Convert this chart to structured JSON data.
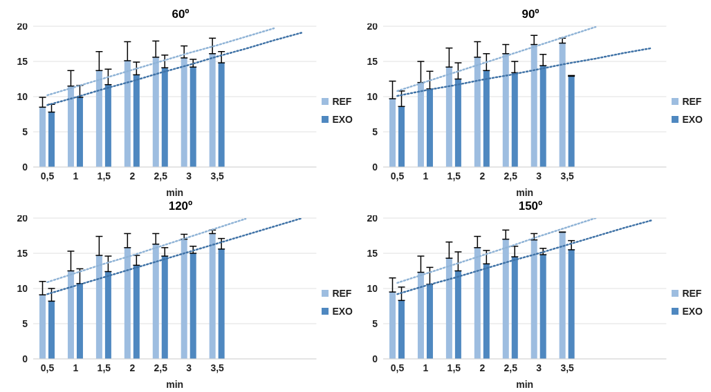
{
  "chart_data": [
    {
      "type": "bar",
      "title": "60º",
      "xlabel": "min",
      "categories": [
        "0,5",
        "1",
        "1,5",
        "2",
        "2,5",
        "3",
        "3,5",
        null,
        null,
        null
      ],
      "ylim": [
        0,
        20
      ],
      "yticks": [
        0,
        5,
        10,
        15,
        20
      ],
      "grid": "y",
      "legend": "right",
      "marker": "none",
      "series": [
        {
          "name": "REF",
          "color": "#9dbde0",
          "values": [
            8.5,
            11.5,
            13.7,
            15.1,
            15.6,
            15.5,
            16.1,
            null,
            null,
            null
          ],
          "errors": [
            [
              8.5,
              9.9
            ],
            [
              11.5,
              13.7
            ],
            [
              13.7,
              16.4
            ],
            [
              15.1,
              17.8
            ],
            [
              15.6,
              17.9
            ],
            [
              15.5,
              17.2
            ],
            [
              16.1,
              18.3
            ],
            null,
            null,
            null
          ]
        },
        {
          "name": "EXO",
          "color": "#4f88c0",
          "values": [
            7.8,
            9.9,
            11.7,
            13.1,
            14.1,
            14.2,
            14.8,
            null,
            null,
            null
          ],
          "errors": [
            [
              7.8,
              8.9
            ],
            [
              9.9,
              11.6
            ],
            [
              11.7,
              13.9
            ],
            [
              13.1,
              14.9
            ],
            [
              14.1,
              15.9
            ],
            [
              14.2,
              15.3
            ],
            [
              14.8,
              16.4
            ],
            null,
            null,
            null
          ]
        },
        {
          "type": "line",
          "line_style": "dotted",
          "color": "#8fb3d6",
          "values": [
            10.2,
            11.4,
            12.6,
            13.8,
            15.0,
            16.2,
            17.3,
            18.5,
            19.7,
            null
          ]
        },
        {
          "type": "line",
          "line_style": "dotted",
          "color": "#3f72a6",
          "values": [
            8.8,
            9.9,
            11.1,
            12.2,
            13.4,
            14.5,
            15.7,
            16.8,
            18.0,
            19.1
          ]
        }
      ]
    },
    {
      "type": "bar",
      "title": "90º",
      "xlabel": "min",
      "categories": [
        "0,5",
        "1",
        "1,5",
        "2",
        "2,5",
        "3",
        "3,5",
        null,
        null,
        null
      ],
      "ylim": [
        0,
        20
      ],
      "yticks": [
        0,
        5,
        10,
        15,
        20
      ],
      "grid": "y",
      "legend": "right",
      "marker": "none",
      "series": [
        {
          "name": "REF",
          "color": "#9dbde0",
          "values": [
            9.7,
            12.0,
            14.2,
            15.6,
            16.1,
            17.4,
            17.6,
            null,
            null,
            null
          ],
          "errors": [
            [
              9.7,
              12.2
            ],
            [
              12.0,
              15.0
            ],
            [
              14.2,
              16.9
            ],
            [
              15.6,
              17.8
            ],
            [
              16.1,
              17.4
            ],
            [
              17.4,
              18.7
            ],
            [
              17.6,
              18.3
            ],
            null,
            null,
            null
          ]
        },
        {
          "name": "EXO",
          "color": "#4f88c0",
          "values": [
            8.6,
            11.1,
            12.5,
            13.7,
            13.4,
            14.4,
            12.9,
            null,
            null,
            null
          ],
          "errors": [
            [
              8.6,
              10.8
            ],
            [
              11.1,
              13.6
            ],
            [
              12.5,
              14.8
            ],
            [
              13.7,
              16.1
            ],
            [
              13.4,
              15.0
            ],
            [
              14.4,
              16.0
            ],
            [
              12.9,
              13.0
            ],
            null,
            null,
            null
          ]
        },
        {
          "type": "line",
          "line_style": "dotted",
          "color": "#8fb3d6",
          "values": [
            10.8,
            12.1,
            13.4,
            14.7,
            16.0,
            17.3,
            18.6,
            19.9,
            null,
            null
          ]
        },
        {
          "type": "line",
          "line_style": "dotted",
          "color": "#3f72a6",
          "values": [
            10.1,
            10.9,
            11.6,
            12.4,
            13.1,
            13.9,
            14.7,
            15.4,
            16.2,
            16.9
          ]
        }
      ]
    },
    {
      "type": "bar",
      "title": "120º",
      "xlabel": "min",
      "categories": [
        "0,5",
        "1",
        "1,5",
        "2",
        "2,5",
        "3",
        "3,5",
        null,
        null,
        null
      ],
      "ylim": [
        0,
        20
      ],
      "yticks": [
        0,
        5,
        10,
        15,
        20
      ],
      "grid": "y",
      "legend": "right",
      "marker": "none",
      "series": [
        {
          "name": "REF",
          "color": "#9dbde0",
          "values": [
            9.1,
            12.5,
            14.7,
            15.8,
            16.3,
            17.0,
            17.8,
            null,
            null,
            null
          ],
          "errors": [
            [
              9.1,
              11.0
            ],
            [
              12.5,
              15.3
            ],
            [
              14.7,
              17.4
            ],
            [
              15.8,
              17.8
            ],
            [
              16.3,
              17.8
            ],
            [
              17.0,
              17.7
            ],
            [
              17.8,
              18.3
            ],
            null,
            null,
            null
          ]
        },
        {
          "name": "EXO",
          "color": "#4f88c0",
          "values": [
            8.2,
            10.7,
            12.4,
            13.3,
            14.6,
            15.0,
            15.6,
            null,
            null,
            null
          ],
          "errors": [
            [
              8.2,
              10.0
            ],
            [
              10.7,
              12.8
            ],
            [
              12.4,
              14.6
            ],
            [
              13.3,
              14.7
            ],
            [
              14.6,
              15.8
            ],
            [
              15.0,
              16.0
            ],
            [
              15.6,
              17.1
            ],
            null,
            null,
            null
          ]
        },
        {
          "type": "line",
          "line_style": "dotted",
          "color": "#8fb3d6",
          "values": [
            10.9,
            12.2,
            13.5,
            14.7,
            16.0,
            17.3,
            18.6,
            19.9,
            null,
            null
          ]
        },
        {
          "type": "line",
          "line_style": "dotted",
          "color": "#3f72a6",
          "values": [
            9.2,
            10.4,
            11.6,
            12.8,
            14.0,
            15.2,
            16.4,
            17.6,
            18.8,
            20.0
          ]
        }
      ]
    },
    {
      "type": "bar",
      "title": "150º",
      "xlabel": "min",
      "categories": [
        "0,5",
        "1",
        "1,5",
        "2",
        "2,5",
        "3",
        "3,5",
        null,
        null,
        null
      ],
      "ylim": [
        0,
        20
      ],
      "yticks": [
        0,
        5,
        10,
        15,
        20
      ],
      "grid": "y",
      "legend": "right",
      "marker": "none",
      "series": [
        {
          "name": "REF",
          "color": "#9dbde0",
          "values": [
            9.5,
            12.3,
            14.3,
            15.8,
            17.0,
            16.9,
            18.0,
            null,
            null,
            null
          ],
          "errors": [
            [
              9.5,
              11.5
            ],
            [
              12.3,
              14.6
            ],
            [
              14.3,
              16.6
            ],
            [
              15.8,
              17.4
            ],
            [
              17.0,
              18.3
            ],
            [
              16.9,
              17.8
            ],
            [
              18.0,
              18.0
            ],
            null,
            null,
            null
          ]
        },
        {
          "name": "EXO",
          "color": "#4f88c0",
          "values": [
            8.3,
            10.6,
            12.5,
            13.5,
            14.5,
            14.8,
            15.5,
            null,
            null,
            null
          ],
          "errors": [
            [
              8.3,
              10.2
            ],
            [
              10.6,
              13.0
            ],
            [
              12.5,
              15.2
            ],
            [
              13.5,
              15.4
            ],
            [
              14.5,
              16.0
            ],
            [
              14.8,
              15.7
            ],
            [
              15.5,
              16.8
            ],
            null,
            null,
            null
          ]
        },
        {
          "type": "line",
          "line_style": "dotted",
          "color": "#8fb3d6",
          "values": [
            10.8,
            12.1,
            13.4,
            14.7,
            16.0,
            17.4,
            18.7,
            20.0,
            null,
            null
          ]
        },
        {
          "type": "line",
          "line_style": "dotted",
          "color": "#3f72a6",
          "values": [
            9.2,
            10.4,
            11.5,
            12.7,
            13.9,
            15.0,
            16.2,
            17.4,
            18.6,
            19.7
          ]
        }
      ]
    }
  ]
}
